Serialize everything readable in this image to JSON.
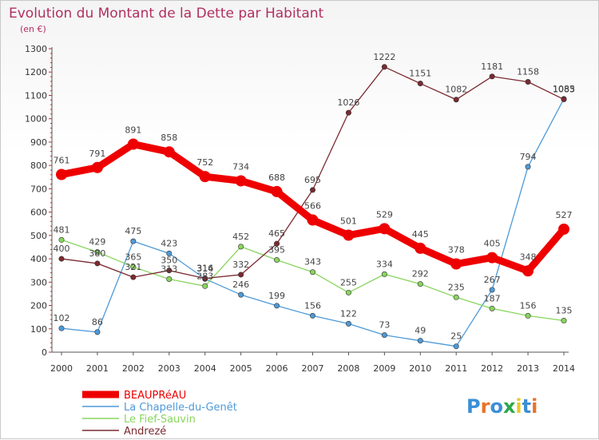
{
  "chart_data": {
    "type": "line",
    "title": "Evolution du Montant de la Dette par Habitant",
    "subtitle": "(en €)",
    "x": [
      "2000",
      "2001",
      "2002",
      "2003",
      "2004",
      "2005",
      "2006",
      "2007",
      "2008",
      "2009",
      "2010",
      "2011",
      "2012",
      "2013",
      "2014"
    ],
    "yticks": [
      0,
      100,
      200,
      300,
      400,
      500,
      600,
      700,
      800,
      900,
      1000,
      1100,
      1200,
      1300
    ],
    "ylim": [
      0,
      1300
    ],
    "grid": false,
    "legend_position": "bottom-left",
    "series": [
      {
        "name": "BEAUPRéAU",
        "color": "#ee0000",
        "values": [
          761,
          791,
          891,
          858,
          752,
          734,
          688,
          566,
          501,
          529,
          445,
          378,
          405,
          348,
          527
        ]
      },
      {
        "name": "La Chapelle-du-Genêt",
        "color": "#4d9ad8",
        "values": [
          102,
          86,
          475,
          423,
          314,
          246,
          199,
          156,
          122,
          73,
          49,
          25,
          267,
          794,
          1085
        ]
      },
      {
        "name": "Le Fief-Sauvin",
        "color": "#88d55d",
        "values": [
          481,
          429,
          365,
          313,
          283,
          452,
          395,
          343,
          255,
          334,
          292,
          235,
          187,
          156,
          135
        ]
      },
      {
        "name": "Andrezé",
        "color": "#7b2a30",
        "values": [
          400,
          380,
          321,
          350,
          316,
          332,
          465,
          695,
          1026,
          1222,
          1151,
          1082,
          1181,
          1158,
          1083
        ]
      }
    ]
  },
  "logo": {
    "text": "Proxiti",
    "colors": [
      "#3a8fd6",
      "#e8732a",
      "#3a8fd6",
      "#2aa84a",
      "#e8c92a",
      "#3a8fd6",
      "#e8732a"
    ]
  }
}
